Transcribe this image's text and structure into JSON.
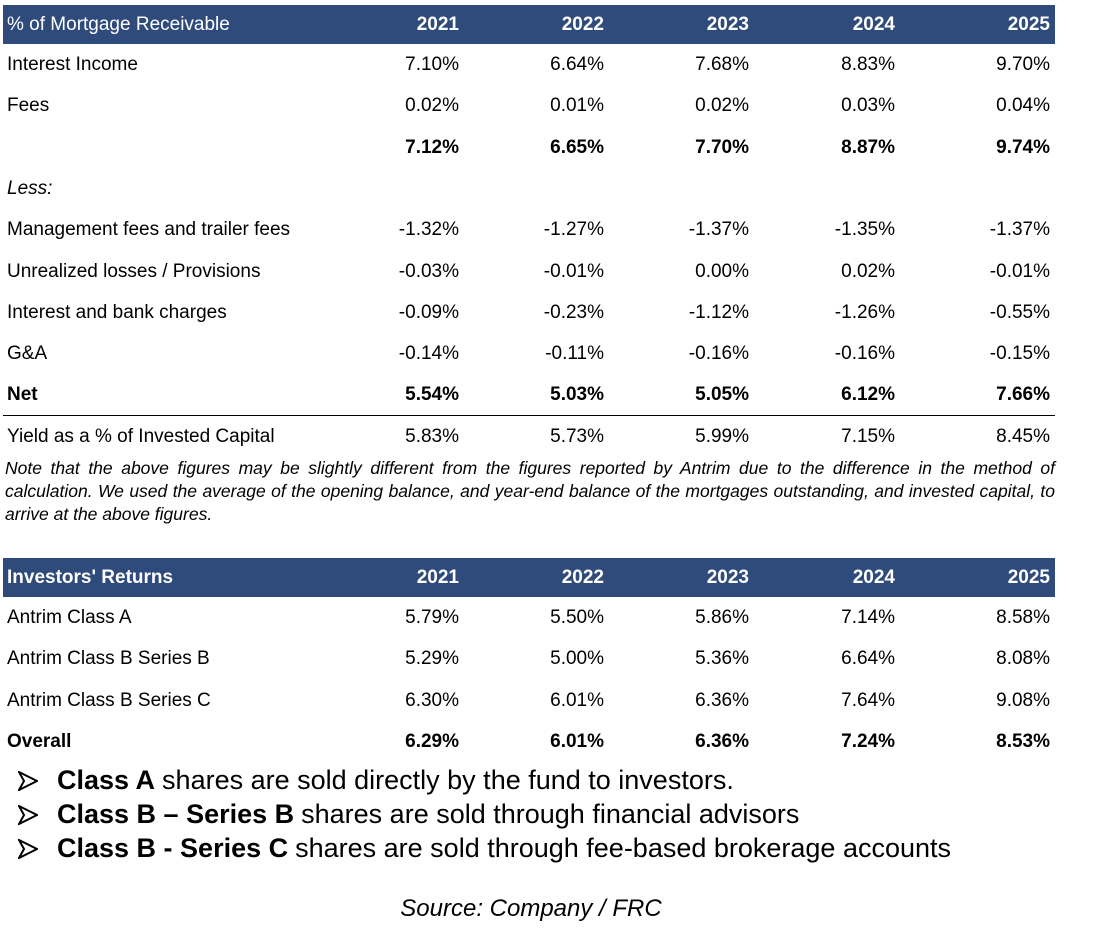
{
  "tables": [
    {
      "header": [
        "% of Mortgage Receivable",
        "2021",
        "2022",
        "2023",
        "2024",
        "2025"
      ],
      "header_label_bold": false,
      "rows": [
        {
          "label": "Interest Income",
          "values": [
            "7.10%",
            "6.64%",
            "7.68%",
            "8.83%",
            "9.70%"
          ]
        },
        {
          "label": "Fees",
          "values": [
            "0.02%",
            "0.01%",
            "0.02%",
            "0.03%",
            "0.04%"
          ]
        },
        {
          "label": null,
          "values": [
            "7.12%",
            "6.65%",
            "7.70%",
            "8.87%",
            "9.74%"
          ],
          "style": "bold"
        },
        {
          "label": "Less:",
          "values": [],
          "style": "italic"
        },
        {
          "label": "Management fees and trailer fees",
          "values": [
            "-1.32%",
            "-1.27%",
            "-1.37%",
            "-1.35%",
            "-1.37%"
          ]
        },
        {
          "label": "Unrealized losses / Provisions",
          "values": [
            "-0.03%",
            "-0.01%",
            "0.00%",
            "0.02%",
            "-0.01%"
          ]
        },
        {
          "label": "Interest and bank charges",
          "values": [
            "-0.09%",
            "-0.23%",
            "-1.12%",
            "-1.26%",
            "-0.55%"
          ]
        },
        {
          "label": "G&A",
          "values": [
            "-0.14%",
            "-0.11%",
            "-0.16%",
            "-0.16%",
            "-0.15%"
          ]
        },
        {
          "label": "Net",
          "values": [
            "5.54%",
            "5.03%",
            "5.05%",
            "6.12%",
            "7.66%"
          ],
          "style": "bold",
          "underline": true
        },
        {
          "label": "Yield as a % of Invested Capital",
          "values": [
            "5.83%",
            "5.73%",
            "5.99%",
            "7.15%",
            "8.45%"
          ]
        }
      ]
    },
    {
      "header": [
        "Investors' Returns",
        "2021",
        "2022",
        "2023",
        "2024",
        "2025"
      ],
      "header_label_bold": true,
      "rows": [
        {
          "label": "Antrim Class A",
          "values": [
            "5.79%",
            "5.50%",
            "5.86%",
            "7.14%",
            "8.58%"
          ]
        },
        {
          "label": "Antrim Class B Series B",
          "values": [
            "5.29%",
            "5.00%",
            "5.36%",
            "6.64%",
            "8.08%"
          ]
        },
        {
          "label": "Antrim Class B Series C",
          "values": [
            "6.30%",
            "6.01%",
            "6.36%",
            "7.64%",
            "9.08%"
          ]
        },
        {
          "label": "Overall",
          "values": [
            "6.29%",
            "6.01%",
            "6.36%",
            "7.24%",
            "8.53%"
          ],
          "style": "bold"
        }
      ]
    }
  ],
  "note": "Note that the above figures may be slightly different from the figures reported by Antrim due to the difference in the method of calculation. We used the average of the opening balance, and year-end balance of the mortgages outstanding, and invested capital, to arrive at the above figures.",
  "bullets": [
    {
      "bold": "Class A",
      "text": "shares are sold directly by the fund to investors."
    },
    {
      "bold": "Class B – Series B",
      "text": "shares are sold through financial advisors"
    },
    {
      "bold": "Class B - Series C",
      "text": "shares are sold through fee-based brokerage accounts"
    }
  ],
  "source": "Source: Company / FRC"
}
